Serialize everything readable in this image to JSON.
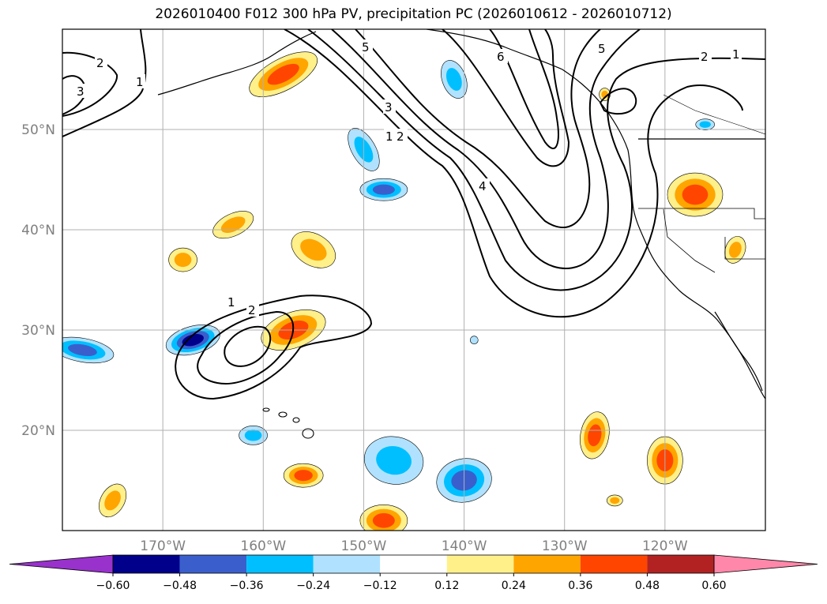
{
  "title": "2026010400 F012 300 hPa PV, precipitation PC (2026010612 - 2026010712)",
  "chart_data": {
    "type": "contour map",
    "projection": "lat-lon",
    "lon_range": [
      -180,
      -110
    ],
    "lat_range": [
      10,
      60
    ],
    "grid": true,
    "y_ticks": [
      {
        "value": 20,
        "label": "20°N"
      },
      {
        "value": 30,
        "label": "30°N"
      },
      {
        "value": 40,
        "label": "40°N"
      },
      {
        "value": 50,
        "label": "50°N"
      }
    ],
    "x_ticks": [
      {
        "value": -170,
        "label": "170°W"
      },
      {
        "value": -160,
        "label": "160°W"
      },
      {
        "value": -150,
        "label": "150°W"
      },
      {
        "value": -140,
        "label": "140°W"
      },
      {
        "value": -130,
        "label": "130°W"
      },
      {
        "value": -120,
        "label": "120°W"
      }
    ],
    "colorbar": {
      "extend": "both",
      "levels": [
        -0.6,
        -0.48,
        -0.36,
        -0.24,
        -0.12,
        0.12,
        0.24,
        0.36,
        0.48,
        0.6
      ],
      "tick_labels": [
        "−0.60",
        "−0.48",
        "−0.36",
        "−0.24",
        "−0.12",
        "0.12",
        "0.24",
        "0.36",
        "0.48",
        "0.60"
      ],
      "colors": [
        "#9932cc",
        "#00008b",
        "#3a5fcd",
        "#00bfff",
        "#b0e2ff",
        "#ffffff",
        "#fff08a",
        "#ffa500",
        "#ff4500",
        "#b22222",
        "#ff88aa"
      ]
    },
    "pv_contour_labels": [
      "1",
      "2",
      "3",
      "4",
      "5",
      "6"
    ],
    "precip_blobs": [
      {
        "lon": -158,
        "lat": 55.5,
        "class": 8
      },
      {
        "lon": -167,
        "lat": 29,
        "class": 1
      },
      {
        "lon": -178,
        "lat": 28,
        "class": 2
      },
      {
        "lon": -157,
        "lat": 30,
        "class": 8
      },
      {
        "lon": -148,
        "lat": 44,
        "class": 2
      },
      {
        "lon": -150,
        "lat": 48,
        "class": 3
      },
      {
        "lon": -155,
        "lat": 38,
        "class": 7
      },
      {
        "lon": -163,
        "lat": 40.5,
        "class": 7
      },
      {
        "lon": -168,
        "lat": 37,
        "class": 7
      },
      {
        "lon": -147,
        "lat": 17,
        "class": 3
      },
      {
        "lon": -140,
        "lat": 15,
        "class": 2
      },
      {
        "lon": -161,
        "lat": 19.5,
        "class": 3
      },
      {
        "lon": -156,
        "lat": 15.5,
        "class": 8
      },
      {
        "lon": -175,
        "lat": 13,
        "class": 7
      },
      {
        "lon": -148,
        "lat": 11,
        "class": 8
      },
      {
        "lon": -141,
        "lat": 55,
        "class": 3
      },
      {
        "lon": -117,
        "lat": 43.5,
        "class": 8
      },
      {
        "lon": -113,
        "lat": 38,
        "class": 7
      },
      {
        "lon": -127,
        "lat": 19.5,
        "class": 8
      },
      {
        "lon": -120,
        "lat": 17,
        "class": 8
      },
      {
        "lon": -125,
        "lat": 13,
        "class": 7
      },
      {
        "lon": -126,
        "lat": 53.5,
        "class": 7
      },
      {
        "lon": -139,
        "lat": 29,
        "class": 4
      },
      {
        "lon": -116,
        "lat": 50.5,
        "class": 3
      }
    ]
  }
}
